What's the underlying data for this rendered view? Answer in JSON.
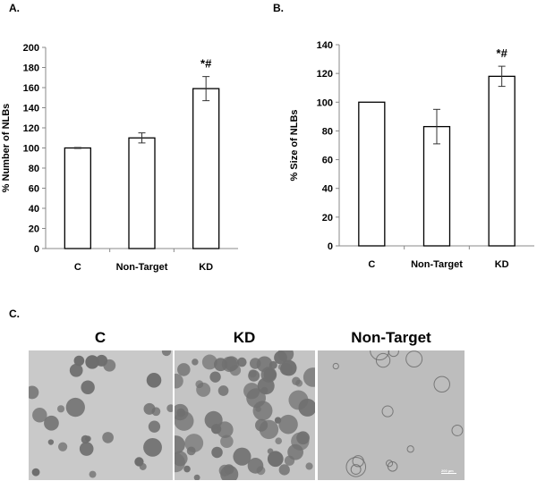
{
  "panel_labels": {
    "a": "A.",
    "b": "B.",
    "c": "C."
  },
  "chart_data": [
    {
      "type": "bar",
      "categories": [
        "C",
        "Non-Target",
        "KD"
      ],
      "values": [
        100,
        110,
        159
      ],
      "errors": [
        0.5,
        5,
        12
      ],
      "annotations": [
        "",
        "",
        "*#"
      ],
      "ylabel": "% Number of NLBs",
      "xlabel": "",
      "ylim": [
        0,
        200
      ],
      "yticks": [
        0,
        20,
        40,
        60,
        80,
        100,
        120,
        140,
        160,
        180,
        200
      ],
      "bar_fill": "#ffffff",
      "bar_stroke": "#000000"
    },
    {
      "type": "bar",
      "categories": [
        "C",
        "Non-Target",
        "KD"
      ],
      "values": [
        100,
        83,
        118
      ],
      "errors": [
        0,
        12,
        7
      ],
      "annotations": [
        "",
        "",
        "*#"
      ],
      "ylabel": "% Size of NLBs",
      "xlabel": "",
      "ylim": [
        0,
        140
      ],
      "yticks": [
        0,
        20,
        40,
        60,
        80,
        100,
        120,
        140
      ],
      "bar_fill": "#ffffff",
      "bar_stroke": "#000000"
    }
  ],
  "micrographs": {
    "titles": [
      "C",
      "KD",
      "Non-Target"
    ],
    "scale_bar": "200 µm",
    "background": "#cfcfcf"
  }
}
